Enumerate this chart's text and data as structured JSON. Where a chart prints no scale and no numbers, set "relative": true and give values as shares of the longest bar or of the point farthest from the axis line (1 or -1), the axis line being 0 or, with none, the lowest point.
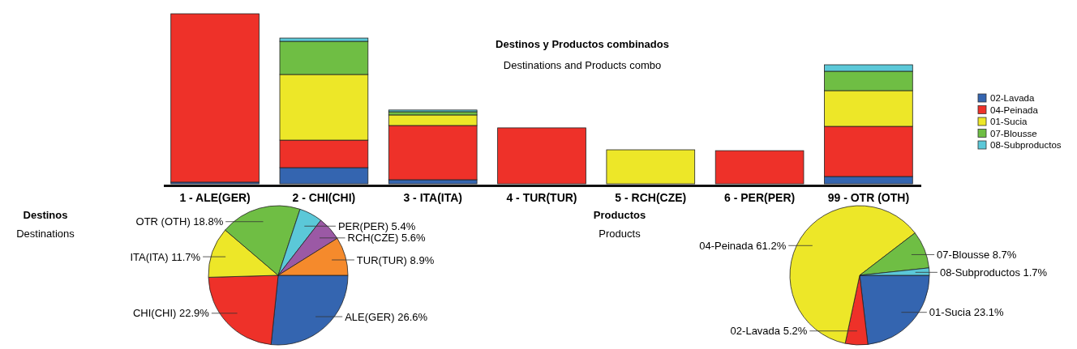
{
  "chart_data": [
    {
      "type": "bar",
      "title": "Destinos y Productos combinados",
      "subtitle": "Destinations and Products combo",
      "categories": [
        "1 - ALE(GER)",
        "2 - CHI(CHI)",
        "3 - ITA(ITA)",
        "4 - TUR(TUR)",
        "5 - RCH(CZE)",
        "6 - PER(PER)",
        "99 - OTR (OTH)"
      ],
      "relative": true,
      "stacked": true,
      "legend": "right",
      "series": [
        {
          "name": "02-Lavada",
          "color": "#3465b0",
          "values": [
            0.01,
            0.095,
            0.024,
            0,
            0,
            0,
            0.043
          ]
        },
        {
          "name": "04-Peinada",
          "color": "#ee3129",
          "values": [
            0.99,
            0.162,
            0.319,
            0.329,
            0,
            0.195,
            0.295
          ]
        },
        {
          "name": "01-Sucia",
          "color": "#ede728",
          "values": [
            0,
            0.386,
            0.062,
            0,
            0.2,
            0,
            0.21
          ]
        },
        {
          "name": "07-Blousse",
          "color": "#6fbe44",
          "values": [
            0,
            0.195,
            0.019,
            0,
            0,
            0,
            0.114
          ]
        },
        {
          "name": "08-Subproductos",
          "color": "#5bc8d8",
          "values": [
            0,
            0.019,
            0.01,
            0,
            0,
            0,
            0.038
          ]
        }
      ]
    },
    {
      "type": "pie",
      "title": "Destinos",
      "subtitle": "Destinations",
      "categories": [
        "ALE(GER)",
        "CHI(CHI)",
        "ITA(ITA)",
        "OTR (OTH)",
        "PER(PER)",
        "RCH(CZE)",
        "TUR(TUR)"
      ],
      "values": [
        26.6,
        22.9,
        11.7,
        18.8,
        5.4,
        5.6,
        8.9
      ],
      "value_labels": [
        "26.6%",
        "22.9%",
        "11.7%",
        "18.8%",
        "5.4%",
        "5.6%",
        "8.9%"
      ],
      "colors": [
        "#3465b0",
        "#ee3129",
        "#ede728",
        "#6fbe44",
        "#5bc8d8",
        "#9b59a5",
        "#f58a2c"
      ]
    },
    {
      "type": "pie",
      "title": "Productos",
      "subtitle": "Products",
      "categories": [
        "01-Sucia",
        "02-Lavada",
        "04-Peinada",
        "07-Blousse",
        "08-Subproductos"
      ],
      "values": [
        23.1,
        5.2,
        61.2,
        8.7,
        1.7
      ],
      "value_labels": [
        "23.1%",
        "5.2%",
        "61.2%",
        "8.7%",
        "1.7%"
      ],
      "colors": [
        "#3465b0",
        "#ee3129",
        "#ede728",
        "#6fbe44",
        "#5bc8d8"
      ]
    }
  ]
}
